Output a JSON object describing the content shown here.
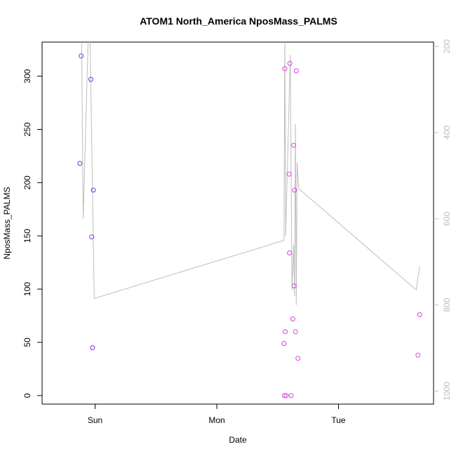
{
  "chart_data": {
    "type": "scatter",
    "title": "ATOM1 North_America NposMass_PALMS",
    "xlabel": "Date",
    "ylabel": "NposMass_PALMS",
    "x_ticks": [
      "Sun",
      "Mon",
      "Tue"
    ],
    "ylim": [
      -8,
      332
    ],
    "y_ticks": [
      0,
      50,
      100,
      150,
      200,
      250,
      300
    ],
    "y2lim": [
      1030,
      190
    ],
    "y2_ticks": [
      200,
      400,
      600,
      800,
      1000
    ],
    "y2_reversed": true,
    "grid": false,
    "legend": "none",
    "colors": {
      "series_a": "#7b2be2",
      "series_b": "#e23ee2",
      "line": "#bdbdbd"
    },
    "series": [
      {
        "color": "#7b2be2",
        "points": [
          {
            "x": "Sat 21:00",
            "y": 218
          },
          {
            "x": "Sat 21:15",
            "y": 319
          },
          {
            "x": "Sat 23:10",
            "y": 297
          },
          {
            "x": "Sat 23:20",
            "y": 149
          },
          {
            "x": "Sat 23:30",
            "y": 45
          },
          {
            "x": "Sat 23:40",
            "y": 193
          }
        ]
      },
      {
        "color": "#e23ee2",
        "points": [
          {
            "x": "Mon 13:15",
            "y": 49
          },
          {
            "x": "Mon 13:20",
            "y": 0
          },
          {
            "x": "Mon 13:25",
            "y": 307
          },
          {
            "x": "Mon 13:30",
            "y": 60
          },
          {
            "x": "Mon 13:40",
            "y": 0
          },
          {
            "x": "Mon 14:15",
            "y": 208
          },
          {
            "x": "Mon 14:20",
            "y": 134
          },
          {
            "x": "Mon 14:25",
            "y": 312
          },
          {
            "x": "Mon 14:40",
            "y": 0
          },
          {
            "x": "Mon 15:00",
            "y": 72
          },
          {
            "x": "Mon 15:10",
            "y": 235
          },
          {
            "x": "Mon 15:15",
            "y": 103
          },
          {
            "x": "Mon 15:20",
            "y": 193
          },
          {
            "x": "Mon 15:30",
            "y": 60
          },
          {
            "x": "Mon 15:40",
            "y": 305
          },
          {
            "x": "Mon 16:00",
            "y": 35
          },
          {
            "x": "Tue 15:40",
            "y": 38
          },
          {
            "x": "Tue 16:00",
            "y": 76
          }
        ]
      },
      {
        "type": "line",
        "axis": "right",
        "color": "#bdbdbd",
        "points": [
          {
            "x": "Sat 21:20",
            "y": 170
          },
          {
            "x": "Sat 21:40",
            "y": 600
          },
          {
            "x": "Sat 22:40",
            "y": 170
          },
          {
            "x": "Sat 23:00",
            "y": 170
          },
          {
            "x": "Sat 23:50",
            "y": 785
          },
          {
            "x": "Mon 13:15",
            "y": 650
          },
          {
            "x": "Mon 13:25",
            "y": 170
          },
          {
            "x": "Mon 13:35",
            "y": 640
          },
          {
            "x": "Mon 14:30",
            "y": 220
          },
          {
            "x": "Mon 14:50",
            "y": 765
          },
          {
            "x": "Mon 15:10",
            "y": 660
          },
          {
            "x": "Mon 15:20",
            "y": 780
          },
          {
            "x": "Mon 15:30",
            "y": 380
          },
          {
            "x": "Mon 15:40",
            "y": 800
          },
          {
            "x": "Mon 15:50",
            "y": 470
          },
          {
            "x": "Mon 16:10",
            "y": 530
          },
          {
            "x": "Tue 15:20",
            "y": 765
          },
          {
            "x": "Tue 16:00",
            "y": 710
          }
        ]
      }
    ]
  }
}
